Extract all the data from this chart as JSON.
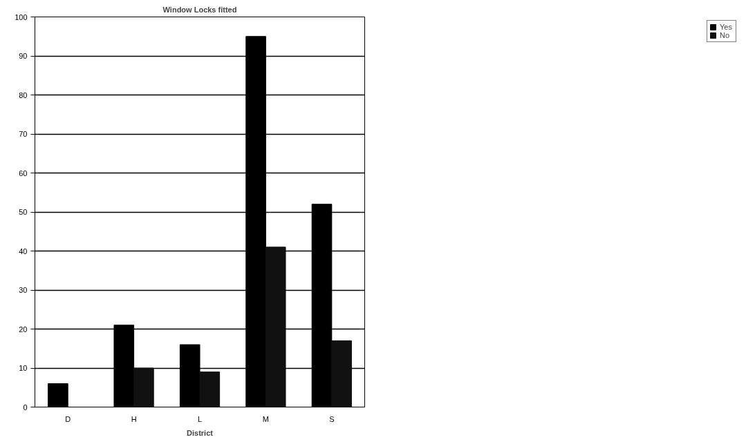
{
  "chart_data": {
    "type": "bar",
    "title": "Window Locks fitted",
    "xlabel": "District",
    "categories": [
      "D",
      "H",
      "L",
      "M",
      "S"
    ],
    "series": [
      {
        "name": "Yes",
        "color": "#000000",
        "values": [
          6,
          21,
          16,
          95,
          52
        ]
      },
      {
        "name": "No",
        "color": "#111111",
        "values": [
          0,
          10,
          9,
          41,
          17
        ]
      }
    ],
    "ylim": [
      0,
      100
    ],
    "yticks": [
      0,
      10,
      20,
      30,
      40,
      50,
      60,
      70,
      80,
      90,
      100
    ],
    "grid": "y",
    "legend": "right"
  }
}
